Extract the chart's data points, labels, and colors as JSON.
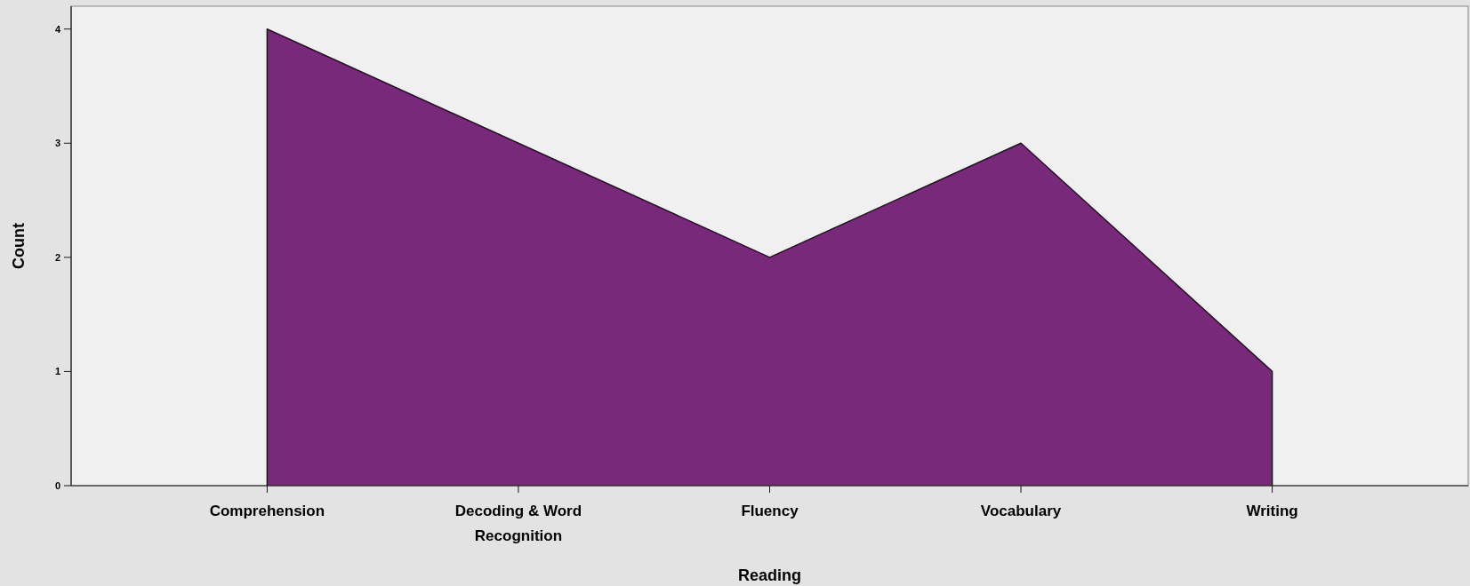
{
  "chart_data": {
    "type": "area",
    "xlabel": "Reading",
    "ylabel": "Count",
    "categories": [
      "Comprehension",
      "Decoding & Word Recognition",
      "Fluency",
      "Vocabulary",
      "Writing"
    ],
    "values": [
      4,
      3,
      2,
      3,
      1
    ],
    "color": "#78297a",
    "ylim": [
      0,
      4.2
    ],
    "yticks": [
      0,
      1,
      2,
      3,
      4
    ],
    "grid": false,
    "legend": false
  }
}
